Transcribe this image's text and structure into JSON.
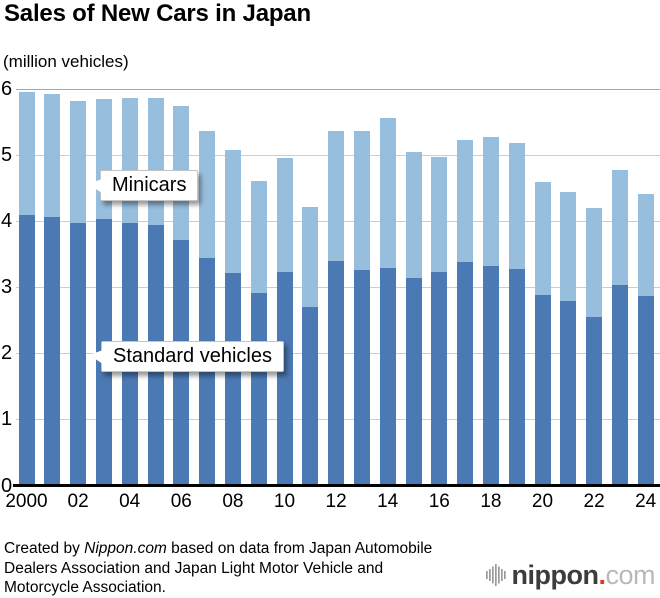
{
  "title": "Sales of New Cars in Japan",
  "subtitle": "(million vehicles)",
  "colors": {
    "standard_bar": "#4b79b4",
    "minicar_bar": "#98bede",
    "gridline": "#cdcdcd",
    "top_gridline": "#a6a6a6",
    "axis": "#000000"
  },
  "callouts": {
    "minicars": "Minicars",
    "standard": "Standard vehicles"
  },
  "chart_data": {
    "type": "bar",
    "stacked": true,
    "title": "Sales of New Cars in Japan",
    "ylabel": "(million vehicles)",
    "ylim": [
      0,
      6
    ],
    "y_ticks": [
      0,
      1,
      2,
      3,
      4,
      5,
      6
    ],
    "grid": true,
    "legend_position": "callout-labels-inside-plot",
    "x": [
      2000,
      2001,
      2002,
      2003,
      2004,
      2005,
      2006,
      2007,
      2008,
      2009,
      2010,
      2011,
      2012,
      2013,
      2014,
      2015,
      2016,
      2017,
      2018,
      2019,
      2020,
      2021,
      2022,
      2023,
      2024
    ],
    "x_tick_labels": [
      "2000",
      "02",
      "04",
      "06",
      "08",
      "10",
      "12",
      "14",
      "16",
      "18",
      "20",
      "22",
      "24"
    ],
    "series": [
      {
        "name": "Standard vehicles",
        "color": "#4b79b4",
        "values": [
          4.1,
          4.07,
          3.98,
          4.03,
          3.97,
          3.94,
          3.72,
          3.44,
          3.22,
          2.92,
          3.23,
          2.7,
          3.4,
          3.26,
          3.29,
          3.15,
          3.24,
          3.39,
          3.33,
          3.28,
          2.88,
          2.8,
          2.56,
          3.04,
          2.87
        ]
      },
      {
        "name": "Minicars",
        "color": "#98bede",
        "values": [
          1.86,
          1.86,
          1.84,
          1.82,
          1.9,
          1.93,
          2.03,
          1.92,
          1.86,
          1.69,
          1.73,
          1.51,
          1.97,
          2.11,
          2.27,
          1.9,
          1.73,
          1.84,
          1.94,
          1.91,
          1.72,
          1.65,
          1.64,
          1.74,
          1.55
        ]
      }
    ],
    "totals": [
      5.96,
      5.93,
      5.82,
      5.85,
      5.87,
      5.87,
      5.75,
      5.36,
      5.08,
      4.61,
      4.96,
      4.21,
      5.37,
      5.37,
      5.56,
      5.05,
      4.97,
      5.23,
      5.27,
      5.19,
      4.6,
      4.45,
      4.2,
      4.78,
      4.42
    ]
  },
  "footer": {
    "line1_pre": "Created by ",
    "line1_italic": "Nippon.com",
    "line1_post": " based on data from Japan Automobile",
    "line2": "Dealers Association and Japan Light Motor Vehicle and",
    "line3": "Motorcycle Association."
  },
  "logo": {
    "name": "nippon",
    "dot": ".",
    "tld": "com"
  }
}
